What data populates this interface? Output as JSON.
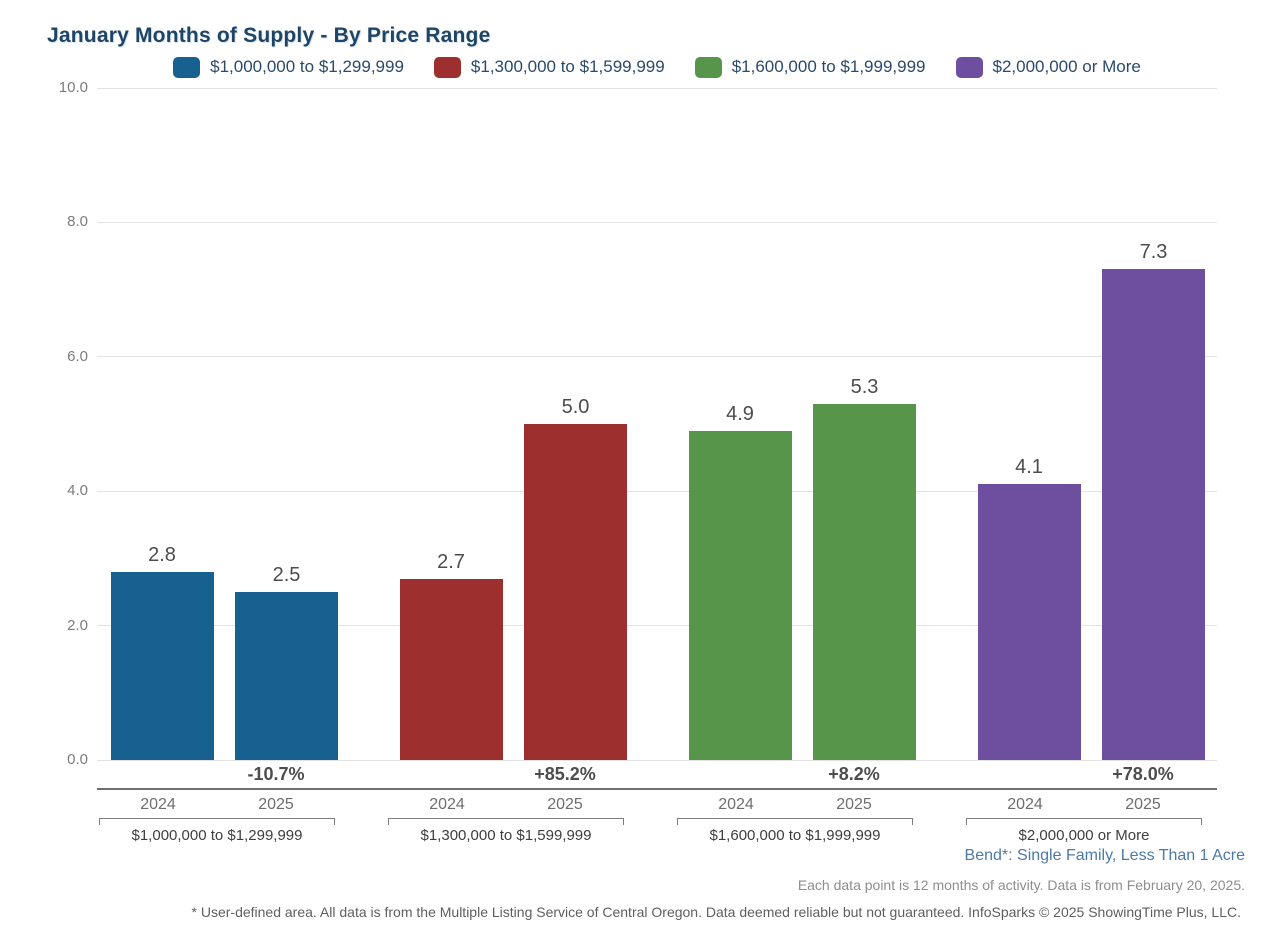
{
  "chart_data": {
    "type": "bar",
    "title": "January Months of Supply - By Price Range",
    "xlabel": "",
    "ylabel": "",
    "ylim": [
      0,
      10
    ],
    "y_ticks": [
      0.0,
      2.0,
      4.0,
      6.0,
      8.0,
      10.0
    ],
    "grid": true,
    "legend_position": "top",
    "categories": [
      "2024",
      "2025"
    ],
    "groups": [
      {
        "label": "$1,000,000 to $1,299,999",
        "color": "#16618f",
        "values": [
          2.8,
          2.5
        ],
        "pct_change": "-10.7%"
      },
      {
        "label": "$1,300,000 to $1,599,999",
        "color": "#9e2f2f",
        "values": [
          2.7,
          5.0
        ],
        "pct_change": "+85.2%"
      },
      {
        "label": "$1,600,000 to $1,999,999",
        "color": "#56954a",
        "values": [
          4.9,
          5.3
        ],
        "pct_change": "+8.2%"
      },
      {
        "label": "$2,000,000 or More",
        "color": "#6e4f9f",
        "values": [
          4.1,
          7.3
        ],
        "pct_change": "+78.0%"
      }
    ]
  },
  "footnotes": {
    "area_line": "Bend*: Single Family, Less Than 1 Acre",
    "data_line": "Each data point is 12 months of activity. Data is from February 20, 2025.",
    "disclaimer": "* User-defined area. All data is from the Multiple Listing Service of Central Oregon. Data deemed reliable but not guaranteed. InfoSparks © 2025 ShowingTime Plus, LLC."
  },
  "colors": {
    "title_text": "#1e4466",
    "legend_text": "#2b4a6b",
    "area_line_text": "#4d7aa8",
    "gridline": "#e3e3e3",
    "axis_line": "#6f6f6f",
    "bracket": "#7d7d7d",
    "value_label": "#4c4c4c",
    "tick_label": "#7c7c7c"
  }
}
